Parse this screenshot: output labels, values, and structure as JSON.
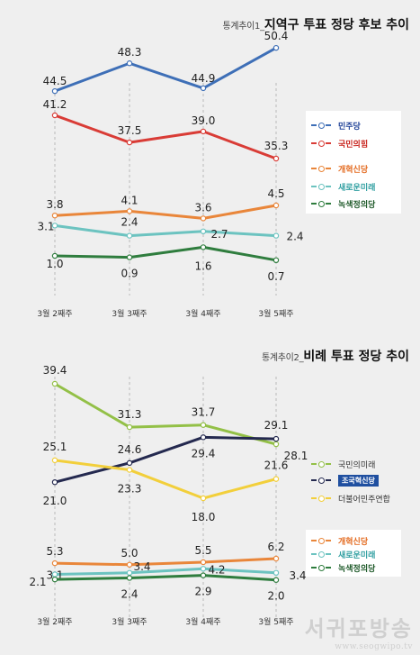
{
  "chart_data": [
    {
      "type": "line",
      "title_prefix": "통계추이1_",
      "title": "지역구 투표 정당 후보 추이",
      "categories": [
        "3월 2째주",
        "3월 3째주",
        "3월 4째주",
        "3월 5째주"
      ],
      "series": [
        {
          "name": "더불어민주당",
          "legend_label": "민주당",
          "color": "#3e6fb7",
          "values": [
            44.5,
            48.3,
            44.9,
            50.4
          ]
        },
        {
          "name": "국민의힘",
          "legend_label": "국민의힘",
          "color": "#d93c36",
          "values": [
            41.2,
            37.5,
            39.0,
            35.3
          ]
        },
        {
          "name": "개혁신당",
          "legend_label": "개혁신당",
          "color": "#e9863a",
          "values": [
            3.8,
            4.1,
            3.6,
            4.5
          ]
        },
        {
          "name": "새로운미래",
          "legend_label": "새로운미래",
          "color": "#6cc3c0",
          "values": [
            3.1,
            2.4,
            2.7,
            2.4
          ]
        },
        {
          "name": "녹색정의당",
          "legend_label": "녹색정의당",
          "color": "#2f7d3e",
          "values": [
            1.0,
            0.9,
            1.6,
            0.7
          ]
        }
      ]
    },
    {
      "type": "line",
      "title_prefix": "통계추이2_",
      "title": "비례 투표 정당 추이",
      "categories": [
        "3월 2째주",
        "3월 3째주",
        "3월 4째주",
        "3월 5째주"
      ],
      "series": [
        {
          "name": "국민의미래",
          "legend_label": "국민의미래",
          "color": "#93c047",
          "values": [
            39.4,
            31.3,
            31.7,
            28.1
          ]
        },
        {
          "name": "조국혁신당",
          "legend_label": "조국혁신당",
          "color": "#24294f",
          "values": [
            21.0,
            24.6,
            29.4,
            29.1
          ]
        },
        {
          "name": "더불어민주연합",
          "legend_label": "더불어민주연합",
          "color": "#f2cf3b",
          "values": [
            25.1,
            23.3,
            18.0,
            21.6
          ]
        },
        {
          "name": "개혁신당",
          "legend_label": "개혁신당",
          "color": "#e9863a",
          "values": [
            5.3,
            5.0,
            5.5,
            6.2
          ]
        },
        {
          "name": "새로운미래",
          "legend_label": "새로운미래",
          "color": "#6cc3c0",
          "values": [
            3.1,
            3.4,
            4.2,
            3.4
          ]
        },
        {
          "name": "녹색정의당",
          "legend_label": "녹색정의당",
          "color": "#2f7d3e",
          "values": [
            2.1,
            2.4,
            2.9,
            2.0
          ]
        }
      ]
    }
  ],
  "watermark": {
    "name": "서귀포방송",
    "url": "www.seogwipo.tv"
  }
}
